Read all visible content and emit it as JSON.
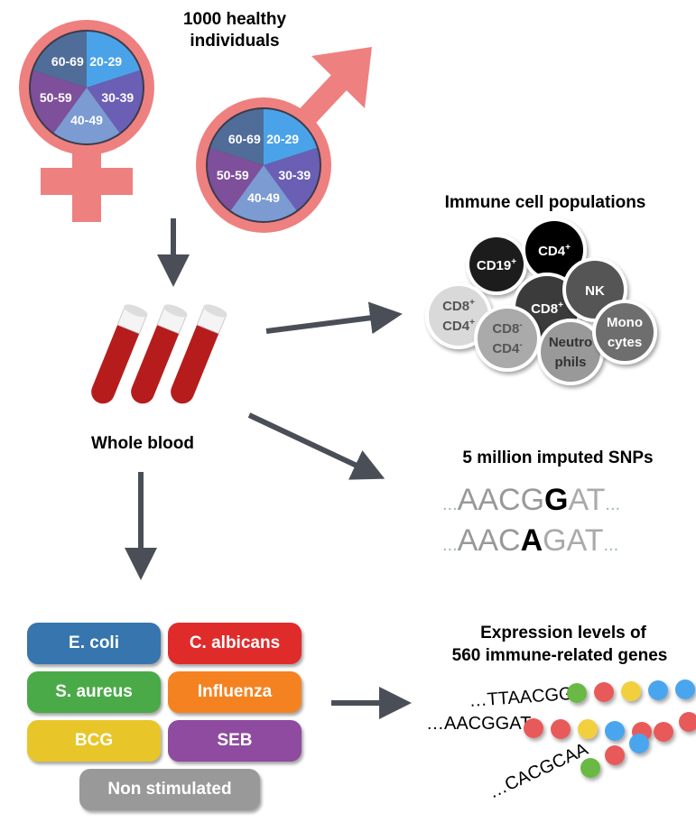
{
  "cohort": {
    "title_line1": "1000 healthy",
    "title_line2": "individuals",
    "age_groups": [
      "20-29",
      "30-39",
      "40-49",
      "50-59",
      "60-69"
    ],
    "slice_colors": [
      "#4aa3e8",
      "#6a5fb5",
      "#7b9bd2",
      "#7e4f9b",
      "#4f6d98"
    ],
    "symbol_color": "#ee8080"
  },
  "blood": {
    "label": "Whole blood"
  },
  "immune": {
    "title": "Immune cell populations",
    "cells": [
      {
        "l1": "CD19",
        "s1": "+",
        "color": "#1e1e1e",
        "text": "#fff"
      },
      {
        "l1": "CD4",
        "s1": "+",
        "color": "#000",
        "text": "#fff"
      },
      {
        "l1": "CD8",
        "s1": "+",
        "l2": "CD4",
        "s2": "+",
        "color": "#d9d9d9",
        "text": "#555"
      },
      {
        "l1": "CD8",
        "s1": "+",
        "color": "#3a3a3a",
        "text": "#fff"
      },
      {
        "l1": "NK",
        "color": "#555",
        "text": "#fff"
      },
      {
        "l1": "CD8",
        "s1": "-",
        "l2": "CD4",
        "s2": "-",
        "color": "#aaa",
        "text": "#555"
      },
      {
        "l1": "Neutro",
        "l2": "phils",
        "color": "#999",
        "text": "#333"
      },
      {
        "l1": "Mono",
        "l2": "cytes",
        "color": "#6e6e6e",
        "text": "#fff"
      }
    ]
  },
  "snps": {
    "title": "5 million imputed SNPs",
    "seq1": {
      "pre": "AACG",
      "mid": "G",
      "post": "AT"
    },
    "seq2": {
      "pre": "AAC",
      "mid": "A",
      "post": "GAT"
    },
    "ellipsis": "..."
  },
  "stimuli": [
    {
      "label": "E. coli",
      "color": "#3675ad"
    },
    {
      "label": "C. albicans",
      "color": "#e02b2b"
    },
    {
      "label": "S. aureus",
      "color": "#4aaa48"
    },
    {
      "label": "Influenza",
      "color": "#f58220"
    },
    {
      "label": "BCG",
      "color": "#e8c62a"
    },
    {
      "label": "SEB",
      "color": "#8e4b9f"
    },
    {
      "label": "Non stimulated",
      "color": "#999999"
    }
  ],
  "expression": {
    "title_line1": "Expression levels of",
    "title_line2": "560 immune-related genes",
    "seqs": [
      "…TTAACGG",
      "…AACGGAT",
      "…CACGCAA"
    ],
    "bead_colors": {
      "green": "#6ab945",
      "red": "#e85a5a",
      "yellow": "#f2cf3c",
      "blue": "#4aa5ee"
    }
  },
  "arrow_color": "#4a4f57"
}
